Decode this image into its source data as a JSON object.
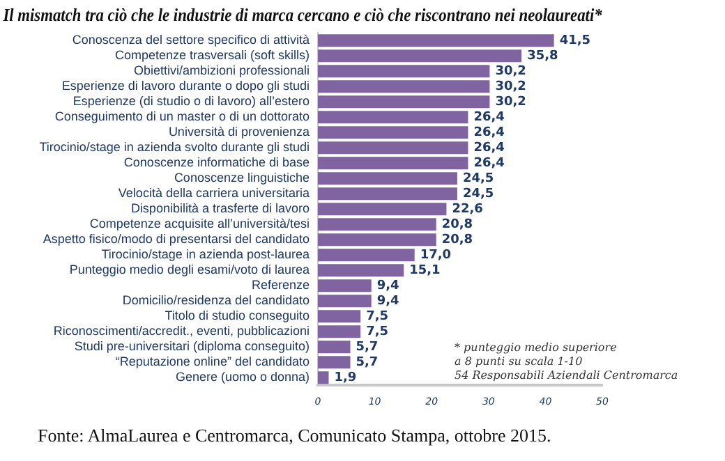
{
  "chart_data": {
    "type": "bar",
    "orientation": "horizontal",
    "title": "Il mismatch tra ciò che le industrie di marca cercano e ciò che riscontrano nei neolaureati*",
    "categories": [
      "Conoscenza del settore specifico di attività",
      "Competenze trasversali (soft skills)",
      "Obiettivi/ambizioni professionali",
      "Esperienze di lavoro durante o dopo gli studi",
      "Esperienze (di studio o di lavoro) all’estero",
      "Conseguimento di un master o di un dottorato",
      "Università di provenienza",
      "Tirocinio/stage in azienda svolto durante gli studi",
      "Conoscenze informatiche di base",
      "Conoscenze linguistiche",
      "Velocità della carriera universitaria",
      "Disponibilità a trasferte di lavoro",
      "Competenze acquisite all’università/tesi",
      "Aspetto fisico/modo di presentarsi del candidato",
      "Tirocinio/stage in azienda post-laurea",
      "Punteggio medio degli esami/voto di laurea",
      "Referenze",
      "Domicilio/residenza del candidato",
      "Titolo di studio conseguito",
      "Riconoscimenti/accredit., eventi, pubblicazioni",
      "Studi pre-universitari (diploma conseguito)",
      "“Reputazione online” del candidato",
      "Genere (uomo o donna)"
    ],
    "values": [
      41.5,
      35.8,
      30.2,
      30.2,
      30.2,
      26.4,
      26.4,
      26.4,
      26.4,
      24.5,
      24.5,
      22.6,
      20.8,
      20.8,
      17.0,
      15.1,
      9.4,
      9.4,
      7.5,
      7.5,
      5.7,
      5.7,
      1.9
    ],
    "value_labels": [
      "41,5",
      "35,8",
      "30,2",
      "30,2",
      "30,2",
      "26,4",
      "26,4",
      "26,4",
      "26,4",
      "24,5",
      "24,5",
      "22,6",
      "20,8",
      "20,8",
      "17,0",
      "15,1",
      "9,4",
      "9,4",
      "7,5",
      "7,5",
      "5,7",
      "5,7",
      "1,9"
    ],
    "color": "#8064a2",
    "xlim": [
      0,
      50
    ],
    "xticks": [
      0,
      10,
      20,
      30,
      40,
      50
    ],
    "grid": false,
    "legend": false,
    "annotations": [
      "* punteggio medio superiore",
      "a 8 punti su scala 1-10",
      "54 Responsabili Aziendali Centromarca",
      "Fonte: AlmaLaurea e Centromarca, Comunicato Stampa, ottobre 2015."
    ]
  }
}
